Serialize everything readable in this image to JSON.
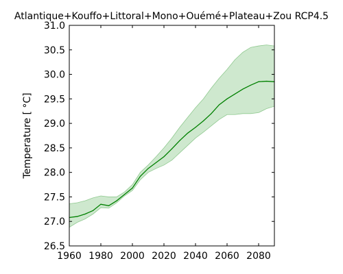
{
  "chart_data": {
    "type": "area",
    "title": "Atlantique+Kouffo+Littoral+Mono+Ouémé+Plateau+Zou RCP4.5",
    "ylabel": "Temperature [ °C]",
    "xlabel": "",
    "xlim": [
      1960,
      2090
    ],
    "ylim": [
      26.5,
      31.0
    ],
    "x_ticks": [
      1960,
      1980,
      2000,
      2020,
      2040,
      2060,
      2080
    ],
    "y_ticks": [
      26.5,
      27.0,
      27.5,
      28.0,
      28.5,
      29.0,
      29.5,
      30.0,
      30.5,
      31.0
    ],
    "x_tick_labels": [
      "1960",
      "1980",
      "2000",
      "2020",
      "2040",
      "2060",
      "2080"
    ],
    "y_tick_labels": [
      "26.5",
      "27.0",
      "27.5",
      "28.0",
      "28.5",
      "29.0",
      "29.5",
      "30.0",
      "30.5",
      "31.0"
    ],
    "grid": false,
    "colors": {
      "line": "#008000",
      "band_fill": "#b3dbb3",
      "band_edge": "#8fc98f"
    },
    "series": [
      {
        "x": [
          1960,
          1965,
          1970,
          1975,
          1980,
          1985,
          1990,
          1995,
          2000,
          2005,
          2010,
          2015,
          2020,
          2025,
          2030,
          2035,
          2040,
          2045,
          2050,
          2055,
          2060,
          2065,
          2070,
          2075,
          2080,
          2085,
          2090
        ],
        "y": [
          27.08,
          27.1,
          27.15,
          27.22,
          27.35,
          27.32,
          27.42,
          27.55,
          27.68,
          27.92,
          28.08,
          28.2,
          28.32,
          28.48,
          28.65,
          28.8,
          28.92,
          29.05,
          29.2,
          29.38,
          29.5,
          29.6,
          29.7,
          29.78,
          29.85,
          29.86,
          29.85
        ],
        "lower": [
          26.88,
          26.98,
          27.05,
          27.15,
          27.28,
          27.27,
          27.38,
          27.52,
          27.63,
          27.85,
          28.0,
          28.08,
          28.15,
          28.25,
          28.4,
          28.55,
          28.7,
          28.82,
          28.95,
          29.08,
          29.18,
          29.18,
          29.2,
          29.2,
          29.22,
          29.3,
          29.35
        ],
        "upper": [
          27.36,
          27.38,
          27.42,
          27.48,
          27.52,
          27.5,
          27.5,
          27.6,
          27.75,
          28.0,
          28.15,
          28.32,
          28.5,
          28.7,
          28.92,
          29.12,
          29.32,
          29.5,
          29.72,
          29.92,
          30.1,
          30.3,
          30.45,
          30.55,
          30.58,
          30.6,
          30.58
        ]
      }
    ]
  }
}
